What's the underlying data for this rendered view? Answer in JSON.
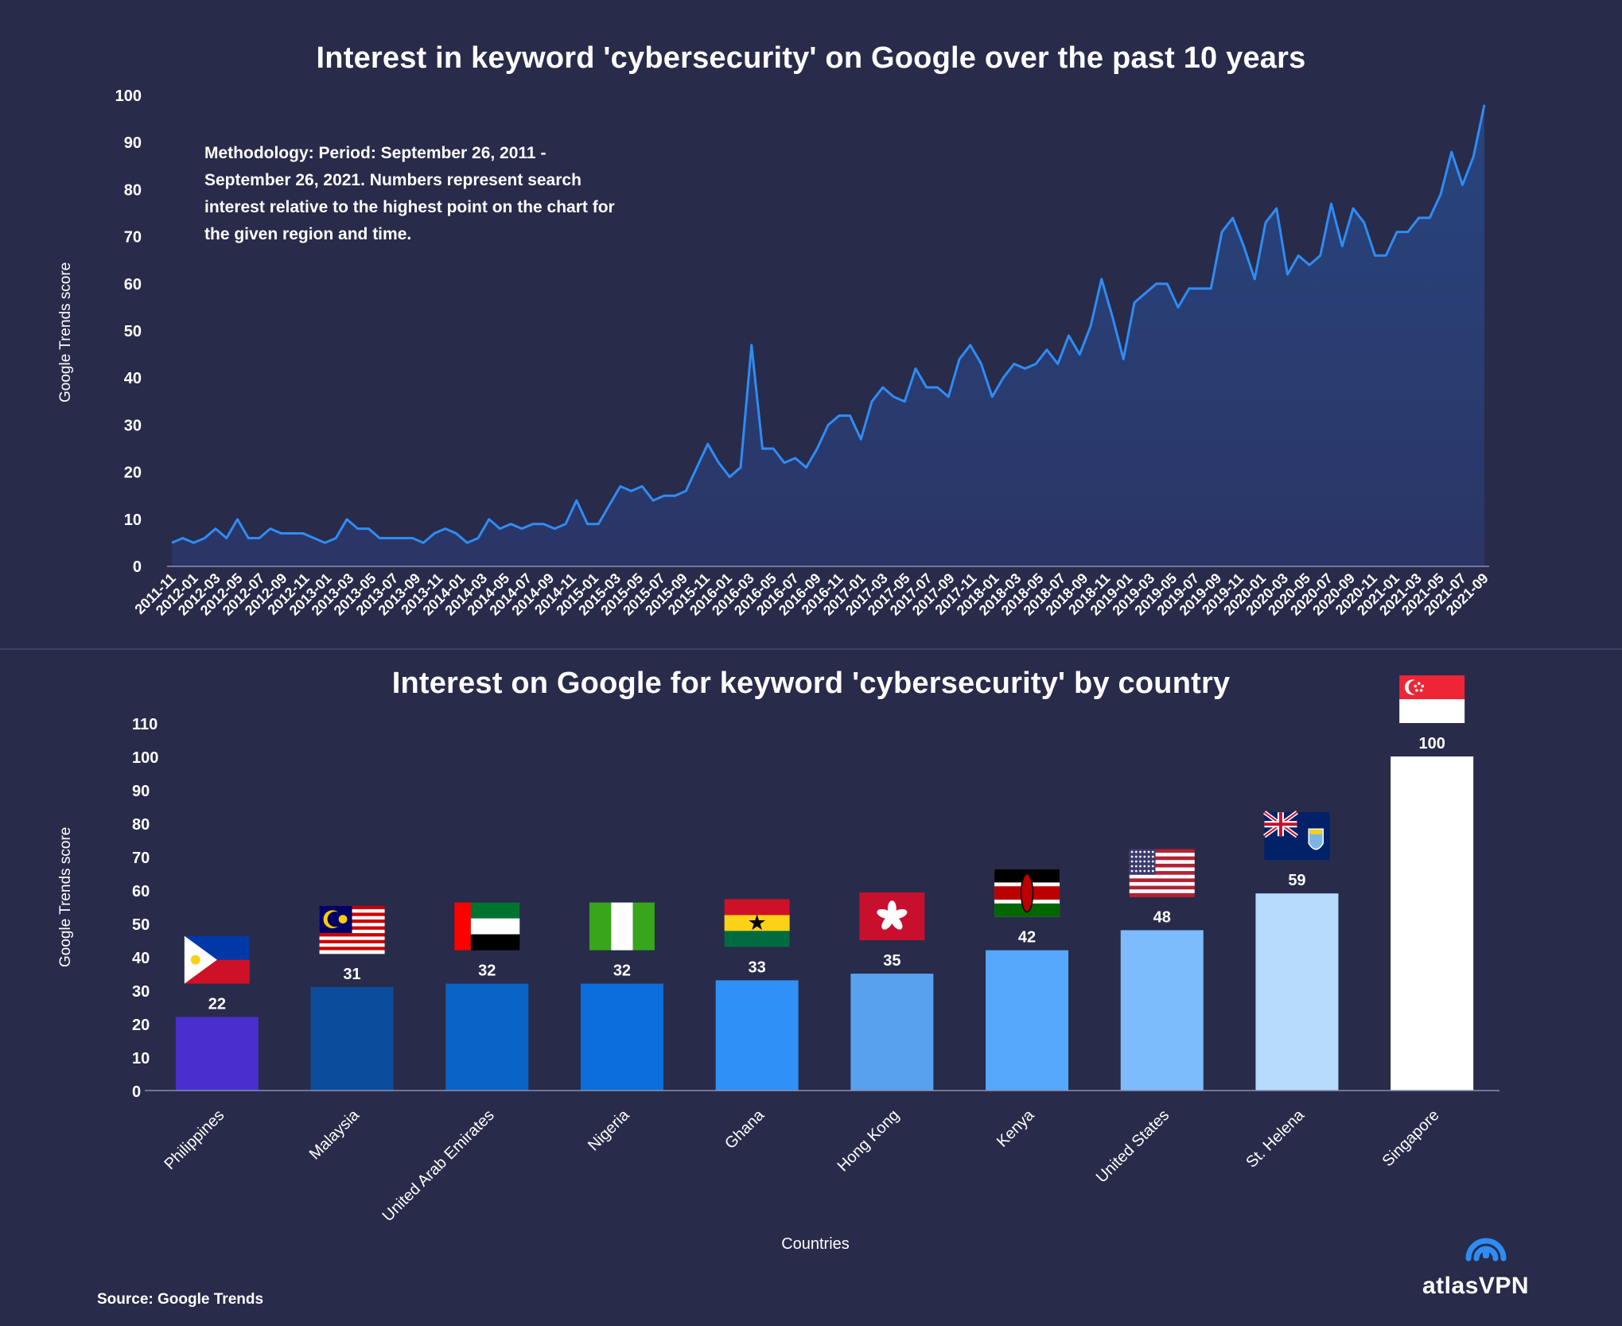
{
  "chart_data": [
    {
      "type": "area",
      "title": "Interest in keyword 'cybersecurity' on Google over the past 10 years",
      "ylabel": "Google Trends score",
      "xlabel": "",
      "ylim": [
        0,
        100
      ],
      "yticks": [
        0,
        10,
        20,
        30,
        40,
        50,
        60,
        70,
        80,
        90,
        100
      ],
      "grid": false,
      "annotation": "Methodology: Period: September 26, 2011 - September 26, 2021. Numbers represent search interest relative to the highest point on the chart for the given region and time.",
      "x_tick_labels": [
        "2011-11",
        "2012-01",
        "2012-03",
        "2012-05",
        "2012-07",
        "2012-09",
        "2012-11",
        "2013-01",
        "2013-03",
        "2013-05",
        "2013-07",
        "2013-09",
        "2013-11",
        "2014-01",
        "2014-03",
        "2014-05",
        "2014-07",
        "2014-09",
        "2014-11",
        "2015-01",
        "2015-03",
        "2015-05",
        "2015-07",
        "2015-09",
        "2015-11",
        "2016-01",
        "2016-03",
        "2016-05",
        "2016-07",
        "2016-09",
        "2016-11",
        "2017-01",
        "2017-03",
        "2017-05",
        "2017-07",
        "2017-09",
        "2017-11",
        "2018-01",
        "2018-03",
        "2018-05",
        "2018-07",
        "2018-09",
        "2018-11",
        "2019-01",
        "2019-03",
        "2019-05",
        "2019-07",
        "2019-09",
        "2019-11",
        "2020-01",
        "2020-03",
        "2020-05",
        "2020-07",
        "2020-09",
        "2020-11",
        "2021-01",
        "2021-03",
        "2021-05",
        "2021-07",
        "2021-09"
      ],
      "series": [
        {
          "name": "cybersecurity",
          "color": "#2f8cf4",
          "values": [
            5,
            6,
            5,
            6,
            8,
            6,
            10,
            6,
            6,
            8,
            7,
            7,
            7,
            6,
            5,
            6,
            10,
            8,
            8,
            6,
            6,
            6,
            6,
            5,
            7,
            8,
            7,
            5,
            6,
            10,
            8,
            9,
            8,
            9,
            9,
            8,
            9,
            14,
            9,
            9,
            13,
            17,
            16,
            17,
            14,
            15,
            15,
            16,
            21,
            26,
            22,
            19,
            21,
            47,
            25,
            25,
            22,
            23,
            21,
            25,
            30,
            32,
            32,
            27,
            35,
            38,
            36,
            35,
            42,
            38,
            38,
            36,
            44,
            47,
            43,
            36,
            40,
            43,
            42,
            43,
            46,
            43,
            49,
            45,
            51,
            61,
            53,
            44,
            56,
            58,
            60,
            60,
            55,
            59,
            59,
            59,
            71,
            74,
            68,
            61,
            73,
            76,
            62,
            66,
            64,
            66,
            77,
            68,
            76,
            73,
            66,
            66,
            71,
            71,
            74,
            74,
            79,
            88,
            81,
            87,
            98
          ]
        }
      ]
    },
    {
      "type": "bar",
      "title": "Interest on Google for keyword 'cybersecurity' by country",
      "xlabel": "Countries",
      "ylabel": "Google Trends score",
      "ylim": [
        0,
        110
      ],
      "yticks": [
        0,
        10,
        20,
        30,
        40,
        50,
        60,
        70,
        80,
        90,
        100,
        110
      ],
      "grid": false,
      "categories": [
        "Philippines",
        "Malaysia",
        "United Arab Emirates",
        "Nigeria",
        "Ghana",
        "Hong Kong",
        "Kenya",
        "United States",
        "St. Helena",
        "Singapore"
      ],
      "values": [
        22,
        31,
        32,
        32,
        33,
        35,
        42,
        48,
        59,
        100
      ],
      "colors": [
        "#4a2fce",
        "#0b4d9c",
        "#0a63c6",
        "#0a6fdc",
        "#2f90f6",
        "#58a1ee",
        "#55a8fb",
        "#7dbcfc",
        "#b7dbfd",
        "#ffffff"
      ]
    }
  ],
  "footer": {
    "source": "Source: Google Trends",
    "brand": "atlasVPN"
  }
}
